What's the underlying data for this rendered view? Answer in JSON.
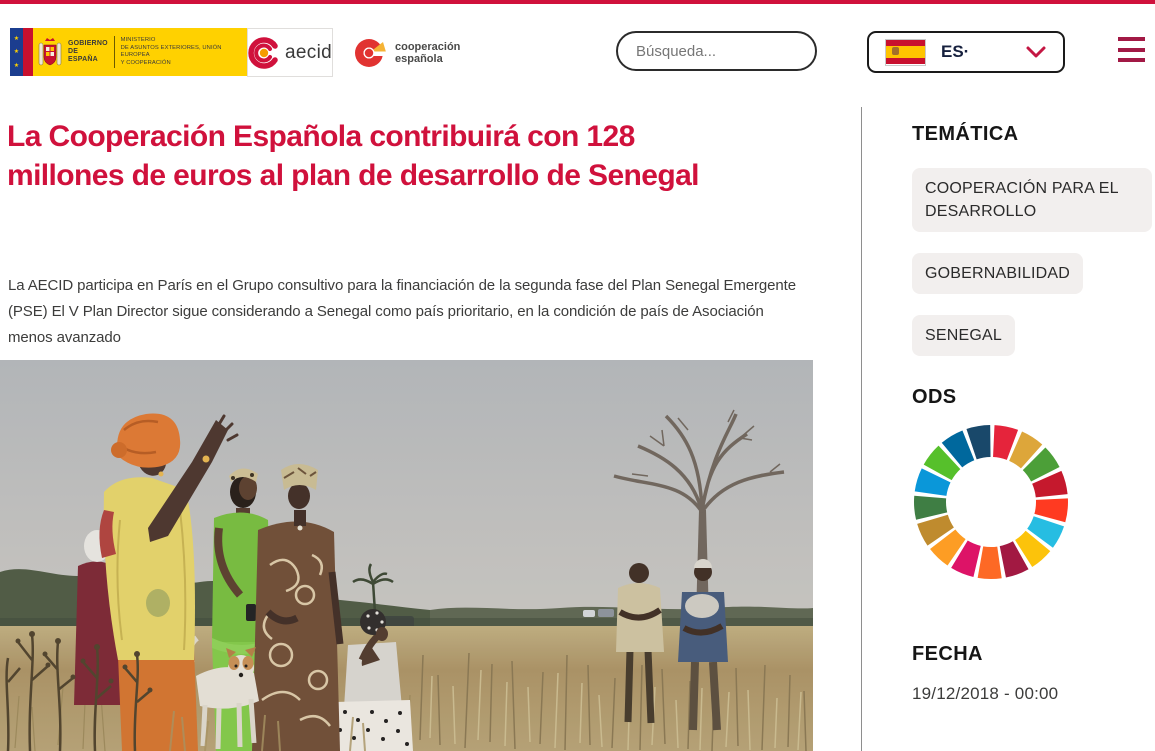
{
  "header": {
    "gobierno": {
      "line1": "GOBIERNO",
      "line2": "DE ESPAÑA"
    },
    "ministerio": {
      "line1": "MINISTERIO",
      "line2": "DE ASUNTOS EXTERIORES, UNIÓN EUROPEA",
      "line3": "Y COOPERACIÓN"
    },
    "aecid_label": "aecid",
    "coop": {
      "line1": "cooperación",
      "line2": "española"
    },
    "search": {
      "placeholder": "Búsqueda..."
    },
    "language": {
      "code": "ES·"
    }
  },
  "icons": {
    "search": "magnifier",
    "language_chevron": "chevron-down",
    "menu": "hamburger",
    "language_flag": "spain-flag"
  },
  "article": {
    "title": "La Cooperación Española contribuirá con 128 millones de euros al plan de desarrollo de Senegal",
    "summary": "La AECID participa en París en el Grupo consultivo para la financiación de la segunda fase del Plan Senegal Emergente (PSE) El V Plan Director sigue considerando a Senegal como país prioritario, en la condición de país de Asociación menos avanzado"
  },
  "sidebar": {
    "tematica": {
      "heading": "TEMÁTICA",
      "tags": [
        "COOPERACIÓN PARA EL DESARROLLO",
        "GOBERNABILIDAD",
        "SENEGAL"
      ]
    },
    "ods": {
      "heading": "ODS",
      "wheel_colors": [
        "#E5243B",
        "#DDA63A",
        "#4C9F38",
        "#C5192D",
        "#FF3A21",
        "#26BDE2",
        "#FCC30B",
        "#A21942",
        "#FD6925",
        "#DD1367",
        "#FD9D24",
        "#BF8B2E",
        "#3F7E44",
        "#0A97D9",
        "#56C02B",
        "#00689D",
        "#19486A"
      ]
    },
    "fecha": {
      "heading": "FECHA",
      "value": "19/12/2018 - 00:00"
    }
  },
  "colors": {
    "accent": "#D0113C",
    "topbar": "#D0113C",
    "menu_icon": "#A21945",
    "tag_background": "#F2EFEE",
    "gobierno_yellow": "#FFD100"
  }
}
